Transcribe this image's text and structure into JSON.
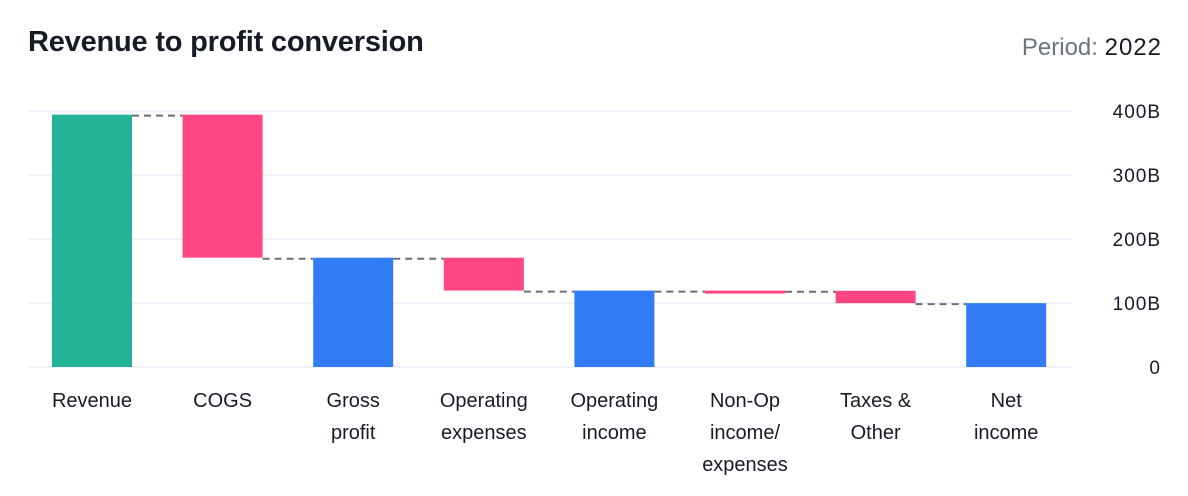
{
  "header": {
    "title": "Revenue to profit conversion",
    "period_label": "Period:",
    "period_value": "2022"
  },
  "colors": {
    "start": "#23b398",
    "decrease": "#ff4582",
    "subtotal": "#327cf5",
    "connector": "#6b6f7a",
    "grid": "#eef1f7"
  },
  "chart_data": {
    "type": "waterfall",
    "title": "Revenue to profit conversion",
    "subtitle": "Period: 2022",
    "xlabel": "",
    "ylabel": "",
    "ylim": [
      0,
      400
    ],
    "unit": "B",
    "y_axis_position": "right",
    "y_ticks": [
      {
        "value": 0,
        "label": "0"
      },
      {
        "value": 100,
        "label": "100B"
      },
      {
        "value": 200,
        "label": "200B"
      },
      {
        "value": 300,
        "label": "300B"
      },
      {
        "value": 400,
        "label": "400B"
      }
    ],
    "grid": true,
    "categories": [
      {
        "label_lines": [
          "Revenue"
        ],
        "kind": "start",
        "from": 0,
        "to": 394.3
      },
      {
        "label_lines": [
          "COGS"
        ],
        "kind": "decrease",
        "from": 394.3,
        "to": 170.8
      },
      {
        "label_lines": [
          "Gross",
          "profit"
        ],
        "kind": "subtotal",
        "from": 0,
        "to": 170.8
      },
      {
        "label_lines": [
          "Operating",
          "expenses"
        ],
        "kind": "decrease",
        "from": 170.8,
        "to": 119.4
      },
      {
        "label_lines": [
          "Operating",
          "income"
        ],
        "kind": "subtotal",
        "from": 0,
        "to": 119.4
      },
      {
        "label_lines": [
          "Non-Op",
          "income/",
          "expenses"
        ],
        "kind": "decrease",
        "from": 119.4,
        "to": 119.1
      },
      {
        "label_lines": [
          "Taxes &",
          "Other"
        ],
        "kind": "decrease",
        "from": 119.1,
        "to": 99.8
      },
      {
        "label_lines": [
          "Net",
          "income"
        ],
        "kind": "subtotal",
        "from": 0,
        "to": 99.8
      }
    ]
  }
}
